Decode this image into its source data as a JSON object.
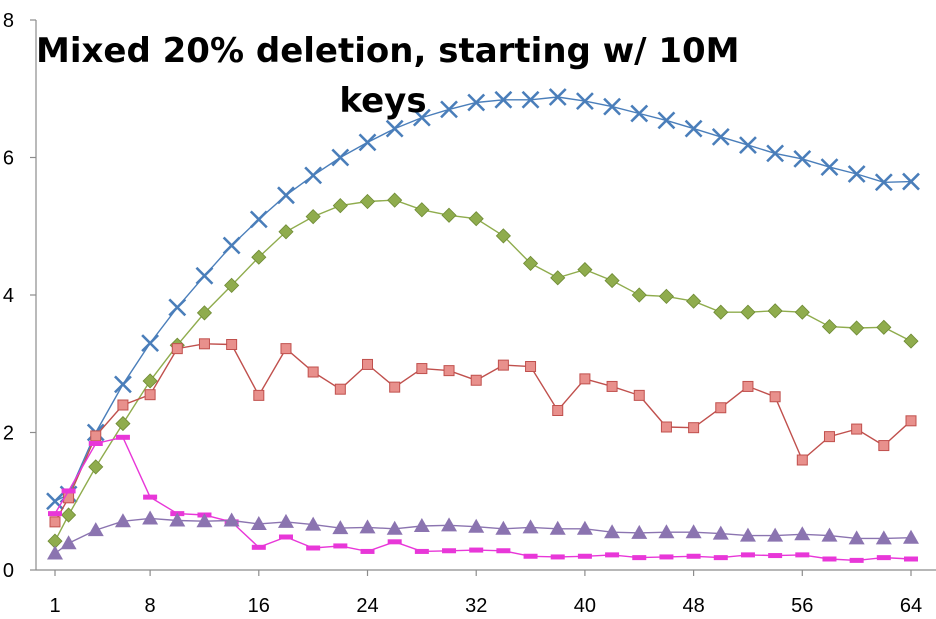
{
  "chart_data": {
    "type": "line",
    "title_lines": [
      "Mixed 20% deletion, starting w/ 10M",
      "keys"
    ],
    "xlabel": "",
    "ylabel": "",
    "x_tick_labels": [
      "1",
      "8",
      "16",
      "24",
      "32",
      "40",
      "48",
      "56",
      "64"
    ],
    "x_ticks": [
      1,
      8,
      16,
      24,
      32,
      40,
      48,
      56,
      64
    ],
    "y_tick_labels": [
      "0",
      "2",
      "4",
      "6",
      "8"
    ],
    "y_ticks": [
      0,
      2,
      4,
      6,
      8
    ],
    "xlim": [
      0,
      65
    ],
    "ylim": [
      0,
      8
    ],
    "grid": false,
    "legend": "none",
    "x": [
      1,
      2,
      4,
      6,
      8,
      10,
      12,
      14,
      16,
      18,
      20,
      22,
      24,
      26,
      28,
      30,
      32,
      34,
      36,
      38,
      40,
      42,
      44,
      46,
      48,
      50,
      52,
      54,
      56,
      58,
      60,
      62,
      64
    ],
    "series": [
      {
        "marker": "x",
        "color": "#4a7eba",
        "values": [
          1.0,
          1.1,
          2.0,
          2.7,
          3.3,
          3.82,
          4.28,
          4.72,
          5.1,
          5.45,
          5.74,
          6.0,
          6.22,
          6.42,
          6.58,
          6.7,
          6.8,
          6.84,
          6.84,
          6.88,
          6.82,
          6.74,
          6.64,
          6.54,
          6.42,
          6.3,
          6.18,
          6.06,
          5.98,
          5.86,
          5.76,
          5.64,
          5.65
        ]
      },
      {
        "marker": "diamond",
        "color": "#8fac4d",
        "values": [
          0.42,
          0.8,
          1.5,
          2.13,
          2.75,
          3.27,
          3.74,
          4.14,
          4.55,
          4.92,
          5.14,
          5.3,
          5.36,
          5.38,
          5.24,
          5.16,
          5.11,
          4.86,
          4.46,
          4.25,
          4.37,
          4.21,
          4.0,
          3.98,
          3.91,
          3.75,
          3.75,
          3.77,
          3.75,
          3.54,
          3.52,
          3.53,
          3.33
        ]
      },
      {
        "marker": "square",
        "color": "#c0504d",
        "values": [
          0.7,
          1.05,
          1.95,
          2.4,
          2.55,
          3.22,
          3.29,
          3.28,
          2.54,
          3.22,
          2.88,
          2.63,
          2.99,
          2.66,
          2.93,
          2.9,
          2.76,
          2.98,
          2.96,
          2.32,
          2.78,
          2.67,
          2.54,
          2.08,
          2.07,
          2.36,
          2.67,
          2.52,
          1.6,
          1.94,
          2.05,
          1.81,
          2.17
        ]
      },
      {
        "marker": "dash",
        "color": "#e837d8",
        "values": [
          0.82,
          1.15,
          1.84,
          1.93,
          1.06,
          0.82,
          0.8,
          0.7,
          0.33,
          0.48,
          0.32,
          0.35,
          0.27,
          0.41,
          0.27,
          0.28,
          0.29,
          0.28,
          0.2,
          0.19,
          0.2,
          0.22,
          0.18,
          0.19,
          0.2,
          0.18,
          0.22,
          0.21,
          0.22,
          0.16,
          0.14,
          0.18,
          0.16
        ]
      },
      {
        "marker": "triangle",
        "color": "#8b74b0",
        "values": [
          0.24,
          0.39,
          0.58,
          0.71,
          0.75,
          0.72,
          0.71,
          0.72,
          0.67,
          0.7,
          0.66,
          0.61,
          0.62,
          0.6,
          0.64,
          0.65,
          0.63,
          0.6,
          0.62,
          0.6,
          0.6,
          0.55,
          0.54,
          0.55,
          0.55,
          0.53,
          0.5,
          0.5,
          0.52,
          0.5,
          0.46,
          0.46,
          0.47
        ]
      }
    ]
  }
}
